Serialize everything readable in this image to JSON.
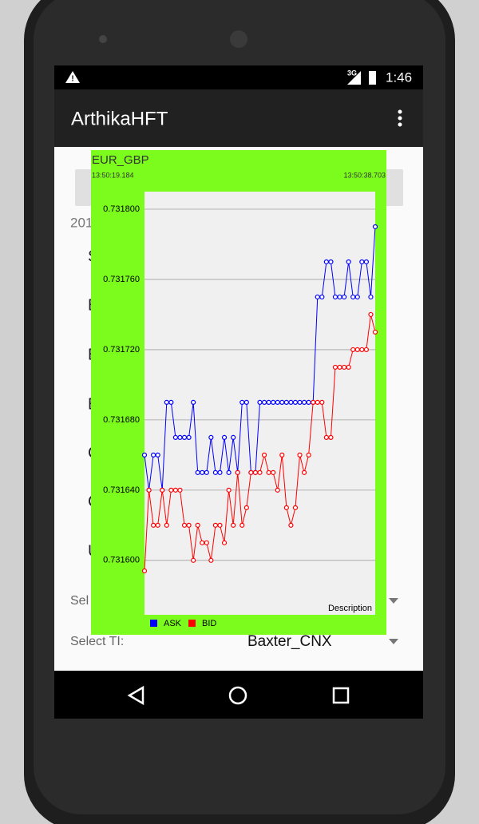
{
  "status_bar": {
    "network": "3G",
    "time": "1:46"
  },
  "app_bar": {
    "title": "ArthikaHFT"
  },
  "background_form": {
    "texts": [
      "201",
      "S",
      "E",
      "E",
      "E",
      "C",
      "C",
      "U",
      "Sel"
    ],
    "select_ti_label": "Select TI:",
    "select_ti_value": "Baxter_CNX"
  },
  "chart_data": {
    "type": "line",
    "title": "EUR_GBP",
    "time_start": "13:50:19.184",
    "time_end": "13:50:38.703",
    "description": "Description",
    "ylim": [
      0.731569,
      0.73181
    ],
    "yticks": [
      {
        "value": 0.7316,
        "label": "0.731600"
      },
      {
        "value": 0.73164,
        "label": "0.731640"
      },
      {
        "value": 0.73168,
        "label": "0.731680"
      },
      {
        "value": 0.73172,
        "label": "0.731720"
      },
      {
        "value": 0.73176,
        "label": "0.731760"
      },
      {
        "value": 0.7318,
        "label": "0.731800"
      }
    ],
    "grid": true,
    "background": "#7cfc1c",
    "plot_background": "#f0f0f0",
    "series": [
      {
        "name": "ASK",
        "color": "#0000ff",
        "values": [
          0.73166,
          0.73164,
          0.73166,
          0.73166,
          0.73164,
          0.73169,
          0.73169,
          0.73167,
          0.73167,
          0.73167,
          0.73167,
          0.73169,
          0.73165,
          0.73165,
          0.73165,
          0.73167,
          0.73165,
          0.73165,
          0.73167,
          0.73165,
          0.73167,
          0.73165,
          0.73169,
          0.73169,
          0.73165,
          0.73165,
          0.73169,
          0.73169,
          0.73169,
          0.73169,
          0.73169,
          0.73169,
          0.73169,
          0.73169,
          0.73169,
          0.73169,
          0.73169,
          0.73169,
          0.73169,
          0.73175,
          0.73175,
          0.73177,
          0.73177,
          0.73175,
          0.73175,
          0.73175,
          0.73177,
          0.73175,
          0.73175,
          0.73177,
          0.73177,
          0.73175,
          0.73179
        ]
      },
      {
        "name": "BID",
        "color": "#ff0000",
        "values": [
          0.731594,
          0.73164,
          0.73162,
          0.73162,
          0.73164,
          0.73162,
          0.73164,
          0.73164,
          0.73164,
          0.73162,
          0.73162,
          0.7316,
          0.73162,
          0.73161,
          0.73161,
          0.7316,
          0.73162,
          0.73162,
          0.73161,
          0.73164,
          0.73162,
          0.73165,
          0.73162,
          0.73163,
          0.73165,
          0.73165,
          0.73165,
          0.73166,
          0.73165,
          0.73165,
          0.73164,
          0.73166,
          0.73163,
          0.73162,
          0.73163,
          0.73166,
          0.73165,
          0.73166,
          0.73169,
          0.73169,
          0.73169,
          0.73167,
          0.73167,
          0.73171,
          0.73171,
          0.73171,
          0.73171,
          0.73172,
          0.73172,
          0.73172,
          0.73172,
          0.73174,
          0.73173
        ]
      }
    ]
  }
}
